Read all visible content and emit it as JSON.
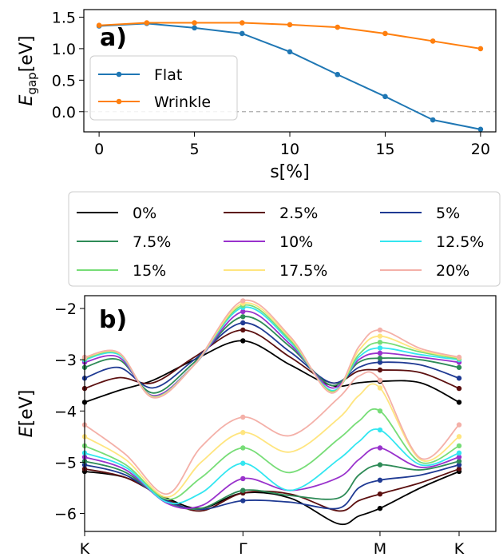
{
  "chart_data": [
    {
      "type": "line",
      "panel_label": "a)",
      "ylabel_main": "E",
      "ylabel_sub": "gap",
      "ylabel_unit": "[eV]",
      "xlabel": "s[%]",
      "xlim": [
        -0.8,
        20.8
      ],
      "ylim": [
        -0.32,
        1.62
      ],
      "xticks": [
        0,
        5,
        10,
        15,
        20
      ],
      "yticks": [
        {
          "v": -0.5,
          "label": ""
        },
        {
          "v": 0.0,
          "label": "0.0"
        },
        {
          "v": 0.5,
          "label": "0.5"
        },
        {
          "v": 1.0,
          "label": "1.0"
        },
        {
          "v": 1.5,
          "label": "1.5"
        }
      ],
      "x": [
        0,
        2.5,
        5,
        7.5,
        10,
        12.5,
        15,
        17.5,
        20
      ],
      "series": [
        {
          "name": "Flat",
          "color": "#1f77b4",
          "values": [
            1.36,
            1.4,
            1.33,
            1.24,
            0.95,
            0.59,
            0.24,
            -0.13,
            -0.28
          ]
        },
        {
          "name": "Wrinkle",
          "color": "#ff7f0e",
          "values": [
            1.37,
            1.41,
            1.41,
            1.41,
            1.38,
            1.34,
            1.24,
            1.12,
            1.0
          ]
        }
      ],
      "zero_line": true,
      "legend_position": "center-left"
    },
    {
      "type": "line",
      "panel_label": "b)",
      "ylabel_main": "E",
      "ylabel_unit": "[eV]",
      "xlim": [
        0,
        3
      ],
      "ylim": [
        -6.35,
        -1.75
      ],
      "yticks": [
        -6,
        -5,
        -4,
        -3,
        -2
      ],
      "kpoints": [
        {
          "v": 0,
          "label": "K"
        },
        {
          "v": 1.155,
          "label": "Γ"
        },
        {
          "v": 2.155,
          "label": "M"
        },
        {
          "v": 2.732,
          "label": "K"
        }
      ],
      "legend_position": "above",
      "series": [
        {
          "name": "0%",
          "color": "#000000",
          "conduction": [
            [
              0,
              -3.83
            ],
            [
              0.25,
              -3.6
            ],
            [
              0.5,
              -3.4
            ],
            [
              0.8,
              -3.0
            ],
            [
              1.155,
              -2.63
            ],
            [
              1.5,
              -3.1
            ],
            [
              1.8,
              -3.5
            ],
            [
              2.0,
              -3.45
            ],
            [
              2.155,
              -3.42
            ],
            [
              2.45,
              -3.45
            ],
            [
              2.732,
              -3.83
            ]
          ],
          "valence": [
            [
              0,
              -5.18
            ],
            [
              0.3,
              -5.3
            ],
            [
              0.6,
              -5.7
            ],
            [
              0.85,
              -5.9
            ],
            [
              1.155,
              -5.6
            ],
            [
              1.5,
              -5.7
            ],
            [
              1.85,
              -6.2
            ],
            [
              2.0,
              -6.05
            ],
            [
              2.155,
              -5.9
            ],
            [
              2.45,
              -5.5
            ],
            [
              2.732,
              -5.18
            ]
          ]
        },
        {
          "name": "2.5%",
          "color": "#5c1010",
          "conduction": [
            [
              0,
              -3.56
            ],
            [
              0.25,
              -3.35
            ],
            [
              0.5,
              -3.45
            ],
            [
              0.8,
              -2.95
            ],
            [
              1.155,
              -2.42
            ],
            [
              1.5,
              -2.95
            ],
            [
              1.8,
              -3.45
            ],
            [
              2.0,
              -3.22
            ],
            [
              2.155,
              -3.2
            ],
            [
              2.45,
              -3.25
            ],
            [
              2.732,
              -3.56
            ]
          ],
          "valence": [
            [
              0,
              -5.13
            ],
            [
              0.3,
              -5.3
            ],
            [
              0.6,
              -5.72
            ],
            [
              0.85,
              -5.95
            ],
            [
              1.155,
              -5.6
            ],
            [
              1.5,
              -5.62
            ],
            [
              1.85,
              -5.95
            ],
            [
              2.0,
              -5.75
            ],
            [
              2.155,
              -5.62
            ],
            [
              2.45,
              -5.4
            ],
            [
              2.732,
              -5.13
            ]
          ]
        },
        {
          "name": "5%",
          "color": "#1f3a93",
          "conduction": [
            [
              0,
              -3.36
            ],
            [
              0.25,
              -3.15
            ],
            [
              0.5,
              -3.55
            ],
            [
              0.8,
              -3.0
            ],
            [
              1.155,
              -2.28
            ],
            [
              1.5,
              -2.85
            ],
            [
              1.8,
              -3.45
            ],
            [
              2.0,
              -3.15
            ],
            [
              2.155,
              -3.05
            ],
            [
              2.45,
              -3.1
            ],
            [
              2.732,
              -3.36
            ]
          ],
          "valence": [
            [
              0,
              -5.05
            ],
            [
              0.3,
              -5.25
            ],
            [
              0.6,
              -5.75
            ],
            [
              0.85,
              -5.92
            ],
            [
              1.155,
              -5.75
            ],
            [
              1.5,
              -5.78
            ],
            [
              1.85,
              -5.9
            ],
            [
              2.0,
              -5.5
            ],
            [
              2.155,
              -5.35
            ],
            [
              2.45,
              -5.25
            ],
            [
              2.732,
              -5.05
            ]
          ]
        },
        {
          "name": "7.5%",
          "color": "#2e8b57",
          "conduction": [
            [
              0,
              -3.15
            ],
            [
              0.25,
              -3.0
            ],
            [
              0.5,
              -3.65
            ],
            [
              0.8,
              -3.05
            ],
            [
              1.155,
              -2.16
            ],
            [
              1.5,
              -2.75
            ],
            [
              1.8,
              -3.5
            ],
            [
              2.0,
              -3.05
            ],
            [
              2.155,
              -2.97
            ],
            [
              2.45,
              -3.0
            ],
            [
              2.732,
              -3.15
            ]
          ],
          "valence": [
            [
              0,
              -4.98
            ],
            [
              0.3,
              -5.2
            ],
            [
              0.6,
              -5.78
            ],
            [
              0.85,
              -5.9
            ],
            [
              1.155,
              -5.55
            ],
            [
              1.5,
              -5.65
            ],
            [
              1.85,
              -5.7
            ],
            [
              2.0,
              -5.25
            ],
            [
              2.155,
              -5.05
            ],
            [
              2.45,
              -5.15
            ],
            [
              2.732,
              -4.98
            ]
          ]
        },
        {
          "name": "10%",
          "color": "#9932cc",
          "conduction": [
            [
              0,
              -3.05
            ],
            [
              0.25,
              -2.95
            ],
            [
              0.5,
              -3.7
            ],
            [
              0.8,
              -3.1
            ],
            [
              1.155,
              -2.06
            ],
            [
              1.5,
              -2.7
            ],
            [
              1.8,
              -3.55
            ],
            [
              2.0,
              -3.0
            ],
            [
              2.155,
              -2.87
            ],
            [
              2.45,
              -2.95
            ],
            [
              2.732,
              -3.05
            ]
          ],
          "valence": [
            [
              0,
              -4.9
            ],
            [
              0.3,
              -5.15
            ],
            [
              0.6,
              -5.8
            ],
            [
              0.85,
              -5.85
            ],
            [
              1.155,
              -5.32
            ],
            [
              1.5,
              -5.55
            ],
            [
              1.85,
              -5.3
            ],
            [
              2.0,
              -4.95
            ],
            [
              2.155,
              -4.72
            ],
            [
              2.45,
              -5.1
            ],
            [
              2.732,
              -4.9
            ]
          ]
        },
        {
          "name": "12.5%",
          "color": "#33e6f0",
          "conduction": [
            [
              0,
              -3.0
            ],
            [
              0.25,
              -2.9
            ],
            [
              0.5,
              -3.72
            ],
            [
              0.8,
              -3.1
            ],
            [
              1.155,
              -1.98
            ],
            [
              1.5,
              -2.65
            ],
            [
              1.8,
              -3.6
            ],
            [
              2.0,
              -2.95
            ],
            [
              2.155,
              -2.77
            ],
            [
              2.45,
              -2.9
            ],
            [
              2.732,
              -3.0
            ]
          ],
          "valence": [
            [
              0,
              -4.82
            ],
            [
              0.3,
              -5.1
            ],
            [
              0.6,
              -5.78
            ],
            [
              0.85,
              -5.6
            ],
            [
              1.155,
              -5.02
            ],
            [
              1.5,
              -5.55
            ],
            [
              1.85,
              -4.95
            ],
            [
              2.0,
              -4.6
            ],
            [
              2.155,
              -4.37
            ],
            [
              2.45,
              -5.05
            ],
            [
              2.732,
              -4.82
            ]
          ]
        },
        {
          "name": "15%",
          "color": "#77dd77",
          "conduction": [
            [
              0,
              -2.98
            ],
            [
              0.25,
              -2.88
            ],
            [
              0.5,
              -3.72
            ],
            [
              0.8,
              -3.1
            ],
            [
              1.155,
              -1.94
            ],
            [
              1.5,
              -2.62
            ],
            [
              1.8,
              -3.62
            ],
            [
              2.0,
              -2.9
            ],
            [
              2.155,
              -2.66
            ],
            [
              2.45,
              -2.85
            ],
            [
              2.732,
              -2.98
            ]
          ],
          "valence": [
            [
              0,
              -4.68
            ],
            [
              0.3,
              -5.05
            ],
            [
              0.6,
              -5.72
            ],
            [
              0.85,
              -5.3
            ],
            [
              1.155,
              -4.72
            ],
            [
              1.5,
              -5.2
            ],
            [
              1.85,
              -4.55
            ],
            [
              2.0,
              -4.2
            ],
            [
              2.155,
              -4.0
            ],
            [
              2.45,
              -5.0
            ],
            [
              2.732,
              -4.68
            ]
          ]
        },
        {
          "name": "17.5%",
          "color": "#ffe57f",
          "conduction": [
            [
              0,
              -2.96
            ],
            [
              0.25,
              -2.87
            ],
            [
              0.5,
              -3.73
            ],
            [
              0.8,
              -3.1
            ],
            [
              1.155,
              -1.9
            ],
            [
              1.5,
              -2.58
            ],
            [
              1.8,
              -3.64
            ],
            [
              2.0,
              -2.82
            ],
            [
              2.155,
              -2.54
            ],
            [
              2.45,
              -2.82
            ],
            [
              2.732,
              -2.96
            ]
          ],
          "valence": [
            [
              0,
              -4.5
            ],
            [
              0.3,
              -4.95
            ],
            [
              0.6,
              -5.68
            ],
            [
              0.85,
              -5.0
            ],
            [
              1.155,
              -4.42
            ],
            [
              1.5,
              -4.8
            ],
            [
              1.85,
              -4.15
            ],
            [
              2.0,
              -3.7
            ],
            [
              2.155,
              -3.55
            ],
            [
              2.45,
              -4.95
            ],
            [
              2.732,
              -4.5
            ]
          ]
        },
        {
          "name": "20%",
          "color": "#f4b0a8",
          "conduction": [
            [
              0,
              -2.95
            ],
            [
              0.25,
              -2.86
            ],
            [
              0.5,
              -3.74
            ],
            [
              0.8,
              -3.1
            ],
            [
              1.155,
              -1.85
            ],
            [
              1.5,
              -2.55
            ],
            [
              1.8,
              -3.65
            ],
            [
              2.0,
              -2.75
            ],
            [
              2.155,
              -2.42
            ],
            [
              2.45,
              -2.78
            ],
            [
              2.732,
              -2.95
            ]
          ],
          "valence": [
            [
              0,
              -4.27
            ],
            [
              0.3,
              -4.85
            ],
            [
              0.6,
              -5.62
            ],
            [
              0.85,
              -4.7
            ],
            [
              1.155,
              -4.12
            ],
            [
              1.5,
              -4.48
            ],
            [
              1.85,
              -3.75
            ],
            [
              2.0,
              -3.32
            ],
            [
              2.155,
              -3.4
            ],
            [
              2.45,
              -4.92
            ],
            [
              2.732,
              -4.27
            ]
          ]
        }
      ]
    }
  ]
}
